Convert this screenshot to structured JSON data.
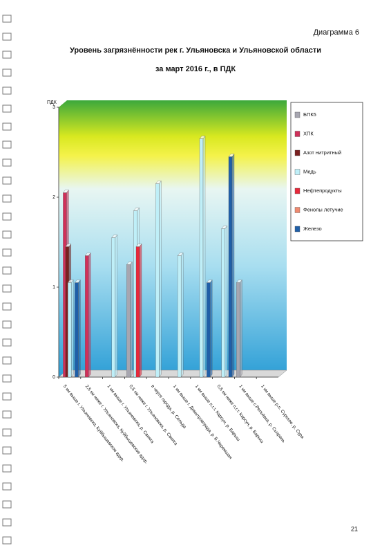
{
  "header": "Диаграмма 6",
  "page_number": "21",
  "chart_data": {
    "type": "bar",
    "title": "Уровень загрязнённости рек г. Ульяновска и Ульяновской области",
    "subtitle": "за март 2016 г., в ПДК",
    "y_label": "ПДК",
    "categories": [
      "5 км выше г. Ульяновска, Куйбышевское вдхр.",
      "2,5 км ниже г. Ульяновска, Куйбышевское вдхр.",
      "1 км выше г. Ульяновска, р. Свияга",
      "0,5 км ниже г. Ульяновска, р. Свияга",
      "в черте города, р. Сельда",
      "1 км выше г. Димитровграда, р. Б.Черемшан",
      "1 км выше п.г.т. Карсун, р. Барыш",
      "0,5 км ниже п.г.т. Карсун, р. Барыш",
      "1 км выше с.Репьёвка, р. Сызрань",
      "1 км выше р.п. Сурское, р. Сура"
    ],
    "series": [
      {
        "name": "БПК5",
        "color": "#a7a6b0",
        "values": [
          null,
          null,
          null,
          1.25,
          null,
          null,
          null,
          null,
          1.05,
          null
        ]
      },
      {
        "name": "ХПК",
        "color": "#d0305a",
        "values": [
          2.05,
          1.35,
          null,
          null,
          null,
          null,
          null,
          null,
          null,
          null
        ]
      },
      {
        "name": "Азот нитритный",
        "color": "#7a2020",
        "values": [
          1.45,
          null,
          null,
          null,
          null,
          null,
          null,
          null,
          null,
          null
        ]
      },
      {
        "name": "Медь",
        "color": "#bfeff8",
        "values": [
          1.05,
          null,
          1.55,
          1.85,
          2.15,
          1.35,
          2.65,
          1.65,
          null,
          null
        ]
      },
      {
        "name": "Нефтепродукты",
        "color": "#e8283a",
        "values": [
          null,
          null,
          null,
          1.45,
          null,
          null,
          null,
          null,
          null,
          null
        ]
      },
      {
        "name": "Фенолы летучие",
        "color": "#f08a70",
        "values": [
          null,
          null,
          null,
          null,
          null,
          null,
          null,
          null,
          null,
          null
        ]
      },
      {
        "name": "Железо",
        "color": "#1f5fa8",
        "values": [
          1.05,
          null,
          null,
          null,
          null,
          null,
          1.05,
          2.45,
          null,
          null
        ]
      }
    ],
    "ylim": [
      0,
      3
    ],
    "yticks": [
      0,
      1,
      2,
      3
    ],
    "legend": "right"
  }
}
